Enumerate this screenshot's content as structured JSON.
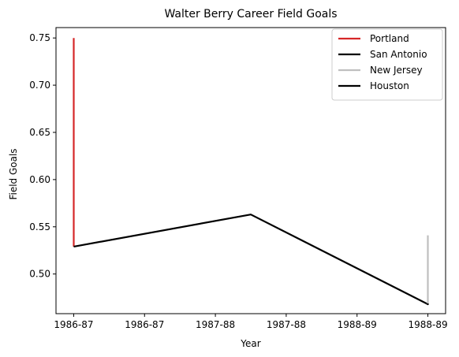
{
  "chart_data": {
    "type": "line",
    "title": "Walter Berry  Career Field Goals",
    "xlabel": "Year",
    "ylabel": "Field Goals",
    "x_ticks": [
      "1986-87",
      "1986-87",
      "1987-88",
      "1987-88",
      "1988-89",
      "1988-89"
    ],
    "x_tick_values": [
      0,
      0.4,
      0.8,
      1.2,
      1.6,
      2.0
    ],
    "xlim": [
      -0.1,
      2.1
    ],
    "y_ticks": [
      "0.50",
      "0.55",
      "0.60",
      "0.65",
      "0.70",
      "0.75"
    ],
    "y_tick_values": [
      0.5,
      0.55,
      0.6,
      0.65,
      0.7,
      0.75
    ],
    "ylim": [
      0.458,
      0.761
    ],
    "grid": false,
    "legend_position": "top-right",
    "series": [
      {
        "name": "Portland",
        "color": "#d62728",
        "x": [
          0,
          0
        ],
        "y": [
          0.75,
          0.529
        ]
      },
      {
        "name": "San Antonio",
        "color": "#000000",
        "x": [
          0,
          1.0,
          2.0
        ],
        "y": [
          0.529,
          0.563,
          0.468
        ]
      },
      {
        "name": "New Jersey",
        "color": "#bfbfbf",
        "x": [
          2.0,
          2.0
        ],
        "y": [
          0.541,
          0.468
        ]
      },
      {
        "name": "Houston",
        "color": "#000000",
        "x": [
          2.0
        ],
        "y": [
          0.468
        ]
      }
    ]
  }
}
